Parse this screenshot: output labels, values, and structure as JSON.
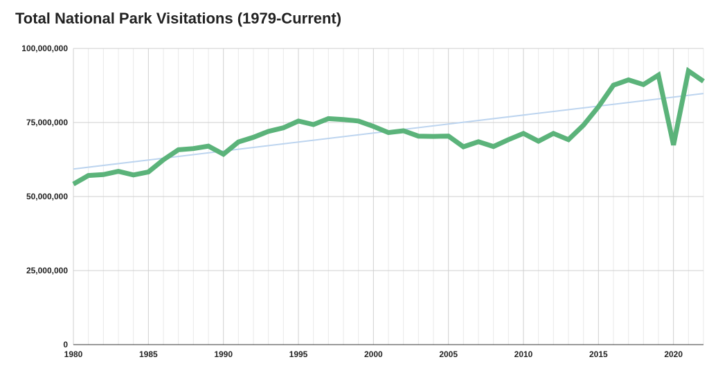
{
  "chart_data": {
    "type": "line",
    "title": "Total National Park Visitations (1979-Current)",
    "xlabel": "",
    "ylabel": "",
    "xlim": [
      1980,
      2022
    ],
    "ylim": [
      0,
      100000000
    ],
    "x_ticks": [
      1980,
      1985,
      1990,
      1995,
      2000,
      2005,
      2010,
      2015,
      2020
    ],
    "y_ticks": [
      0,
      25000000,
      50000000,
      75000000,
      100000000
    ],
    "y_tick_labels": [
      "0",
      "25,000,000",
      "50,000,000",
      "75,000,000",
      "100,000,000"
    ],
    "grid": true,
    "legend": "none",
    "series": [
      {
        "color": "#5bb37a",
        "x": [
          1980,
          1981,
          1982,
          1983,
          1984,
          1985,
          1986,
          1987,
          1988,
          1989,
          1990,
          1991,
          1992,
          1993,
          1994,
          1995,
          1996,
          1997,
          1998,
          1999,
          2000,
          2001,
          2002,
          2003,
          2004,
          2005,
          2006,
          2007,
          2008,
          2009,
          2010,
          2011,
          2012,
          2013,
          2014,
          2015,
          2016,
          2017,
          2018,
          2019,
          2020,
          2021,
          2022
        ],
        "y": [
          54200000,
          57100000,
          57400000,
          58500000,
          57300000,
          58300000,
          62400000,
          65800000,
          66200000,
          67000000,
          64300000,
          68400000,
          70000000,
          72000000,
          73200000,
          75500000,
          74300000,
          76300000,
          76000000,
          75500000,
          73700000,
          71600000,
          72200000,
          70400000,
          70300000,
          70400000,
          66800000,
          68500000,
          66900000,
          69200000,
          71300000,
          68700000,
          71300000,
          69200000,
          74100000,
          80300000,
          87600000,
          89400000,
          87800000,
          91000000,
          67400000,
          92400000,
          88900000
        ]
      },
      {
        "type": "trendline",
        "color": "#bcd4ef",
        "x": [
          1980,
          2022
        ],
        "y": [
          59300000,
          84800000
        ]
      }
    ]
  }
}
